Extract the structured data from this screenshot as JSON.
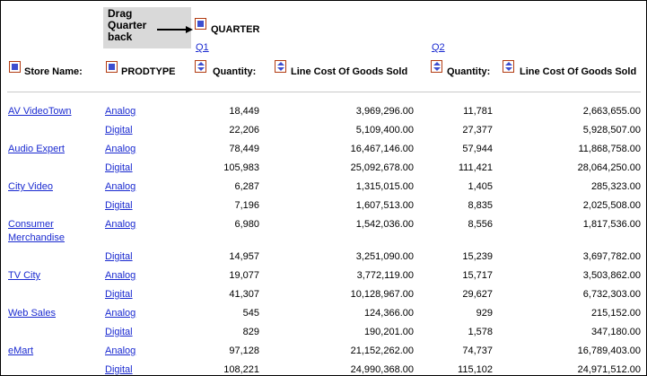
{
  "tooltip": {
    "line1": "Drag",
    "line2": "Quarter",
    "line3": "back"
  },
  "header": {
    "quarter_label": "QUARTER",
    "q1_label": "Q1",
    "q2_label": "Q2",
    "store_name_label": "Store Name:",
    "prodtype_label": "PRODTYPE",
    "quantity_label": "Quantity:",
    "line_cost_label": "Line Cost Of Goods Sold"
  },
  "rows": [
    {
      "store": "AV VideoTown",
      "prod": "Analog",
      "q1_qty": "18,449",
      "q1_cost": "3,969,296.00",
      "q2_qty": "11,781",
      "q2_cost": "2,663,655.00"
    },
    {
      "store": "",
      "prod": "Digital",
      "q1_qty": "22,206",
      "q1_cost": "5,109,400.00",
      "q2_qty": "27,377",
      "q2_cost": "5,928,507.00"
    },
    {
      "store": "Audio Expert",
      "prod": "Analog",
      "q1_qty": "78,449",
      "q1_cost": "16,467,146.00",
      "q2_qty": "57,944",
      "q2_cost": "11,868,758.00"
    },
    {
      "store": "",
      "prod": "Digital",
      "q1_qty": "105,983",
      "q1_cost": "25,092,678.00",
      "q2_qty": "111,421",
      "q2_cost": "28,064,250.00"
    },
    {
      "store": "City Video",
      "prod": "Analog",
      "q1_qty": "6,287",
      "q1_cost": "1,315,015.00",
      "q2_qty": "1,405",
      "q2_cost": "285,323.00"
    },
    {
      "store": "",
      "prod": "Digital",
      "q1_qty": "7,196",
      "q1_cost": "1,607,513.00",
      "q2_qty": "8,835",
      "q2_cost": "2,025,508.00"
    },
    {
      "store": "Consumer",
      "store2": "Merchandise",
      "prod": "Analog",
      "q1_qty": "6,980",
      "q1_cost": "1,542,036.00",
      "q2_qty": "8,556",
      "q2_cost": "1,817,536.00"
    },
    {
      "store": "",
      "prod": "Digital",
      "q1_qty": "14,957",
      "q1_cost": "3,251,090.00",
      "q2_qty": "15,239",
      "q2_cost": "3,697,782.00"
    },
    {
      "store": "TV City",
      "prod": "Analog",
      "q1_qty": "19,077",
      "q1_cost": "3,772,119.00",
      "q2_qty": "15,717",
      "q2_cost": "3,503,862.00"
    },
    {
      "store": "",
      "prod": "Digital",
      "q1_qty": "41,307",
      "q1_cost": "10,128,967.00",
      "q2_qty": "29,627",
      "q2_cost": "6,732,303.00"
    },
    {
      "store": "Web Sales",
      "prod": "Analog",
      "q1_qty": "545",
      "q1_cost": "124,366.00",
      "q2_qty": "929",
      "q2_cost": "215,152.00"
    },
    {
      "store": "",
      "prod": "Digital",
      "q1_qty": "829",
      "q1_cost": "190,201.00",
      "q2_qty": "1,578",
      "q2_cost": "347,180.00"
    },
    {
      "store": "eMart",
      "prod": "Analog",
      "q1_qty": "97,128",
      "q1_cost": "21,152,262.00",
      "q2_qty": "74,737",
      "q2_cost": "16,789,403.00"
    },
    {
      "store": "",
      "prod": "Digital",
      "q1_qty": "108,221",
      "q1_cost": "24,990,368.00",
      "q2_qty": "115,102",
      "q2_cost": "24,971,512.00"
    }
  ]
}
